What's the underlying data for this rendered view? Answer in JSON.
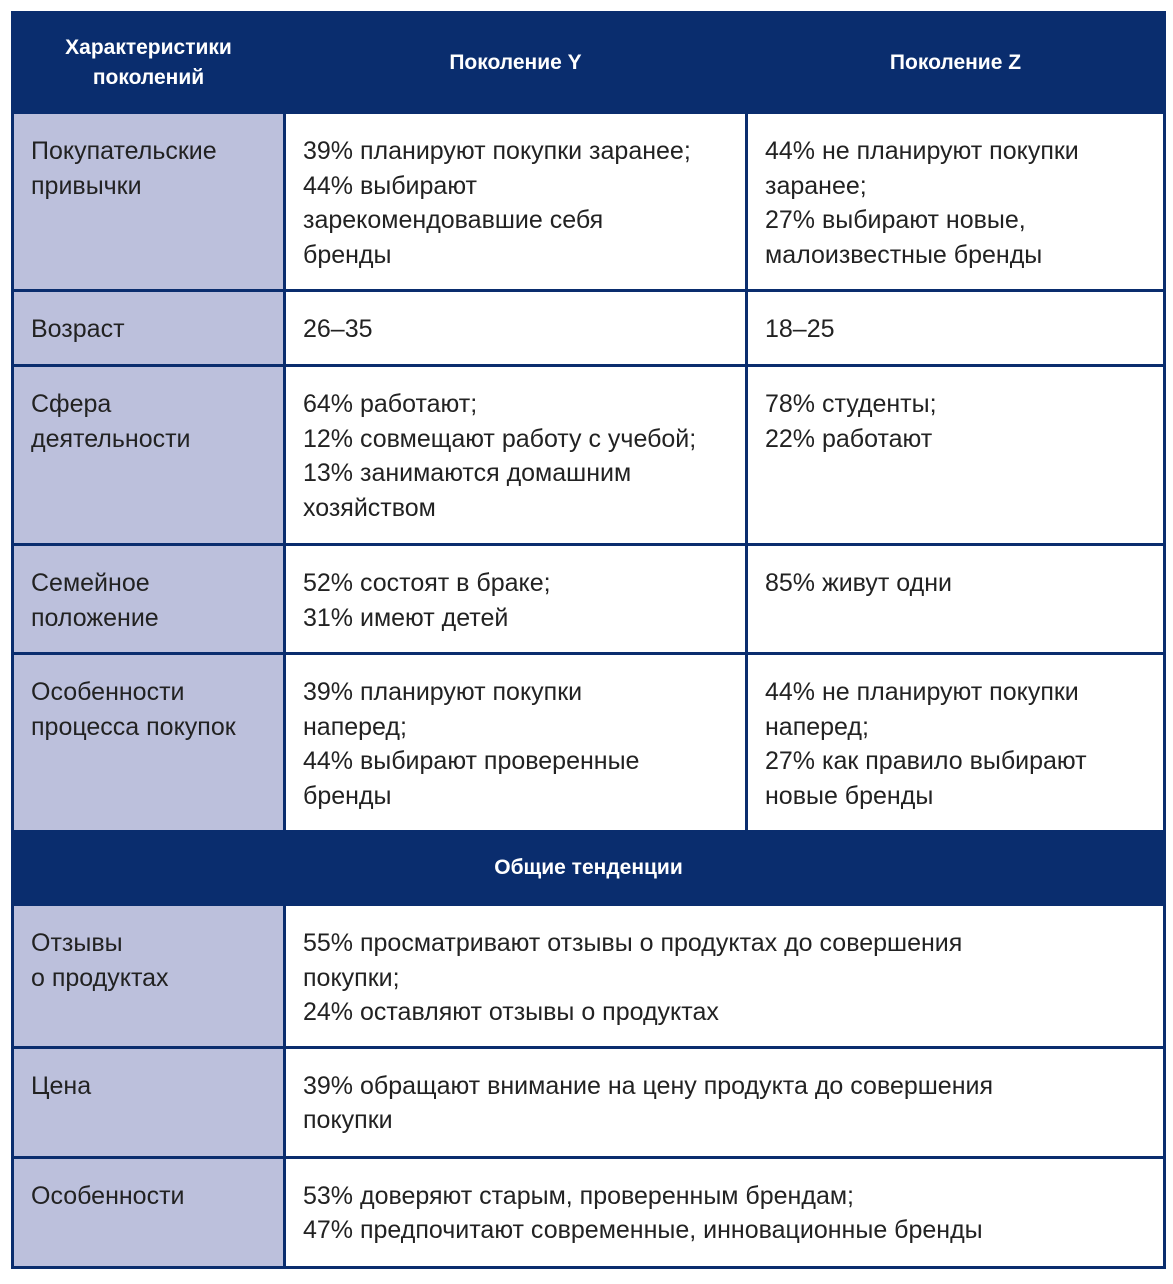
{
  "header": {
    "col1": "Характеристики\nпоколений",
    "col2": "Поколение Y",
    "col3": "Поколение Z"
  },
  "rows": [
    {
      "label": "Покупательские\nпривычки",
      "y": "39% планируют покупки заранее;\n44% выбирают\nзарекомендовавшие себя\nбренды",
      "z": "44% не планируют покупки\nзаранее;\n27% выбирают новые,\nмалоизвестные бренды"
    },
    {
      "label": "Возраст",
      "y": "26–35",
      "z": "18–25"
    },
    {
      "label": "Сфера\nдеятельности",
      "y": "64% работают;\n12% совмещают работу с учебой;\n13% занимаются домашним\nхозяйством",
      "z": "78% студенты;\n22% работают"
    },
    {
      "label": "Семейное\nположение",
      "y": "52% состоят в браке;\n31% имеют детей",
      "z": "85% живут одни"
    },
    {
      "label": "Особенности\nпроцесса покупок",
      "y": "39% планируют покупки\nнаперед;\n44% выбирают проверенные\nбренды",
      "z": "44% не планируют покупки\nнаперед;\n27% как правило выбирают\nновые бренды"
    }
  ],
  "section": {
    "title": "Общие тенденции"
  },
  "common_rows": [
    {
      "label": "Отзывы\nо продуктах",
      "value": "55% просматривают отзывы о продуктах до совершения\nпокупки;\n24% оставляют отзывы о продуктах"
    },
    {
      "label": "Цена",
      "value": "39% обращают внимание на цену продукта до совершения\nпокупки"
    },
    {
      "label": "Особенности",
      "value": "53% доверяют старым, проверенным брендам;\n47% предпочитают современные, инновационные бренды"
    }
  ],
  "colors": {
    "header": "#0a2d6e",
    "label_cell": "#bcc0dc"
  }
}
